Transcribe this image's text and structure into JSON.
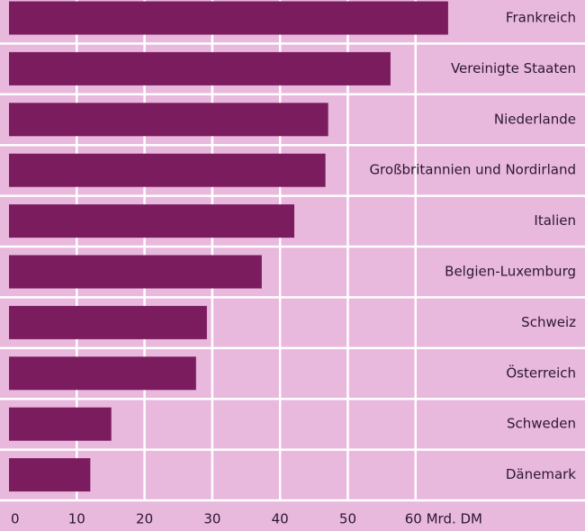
{
  "chart_data": {
    "type": "hbar",
    "categories": [
      "Frankreich",
      "Vereinigte Staaten",
      "Niederlande",
      "Großbritannien und Nordirland",
      "Italien",
      "Belgien-Luxemburg",
      "Schweiz",
      "Österreich",
      "Schweden",
      "Dänemark"
    ],
    "values": [
      64.8,
      56.3,
      47.1,
      46.7,
      42.1,
      37.3,
      29.2,
      27.6,
      15.1,
      12
    ],
    "color": "#7b1c5e",
    "xlim": [
      0,
      85
    ],
    "xticks": [
      0,
      10,
      20,
      30,
      40,
      50,
      {
        "value": 60,
        "label": "60 Mrd. DM"
      }
    ],
    "grid": true
  }
}
